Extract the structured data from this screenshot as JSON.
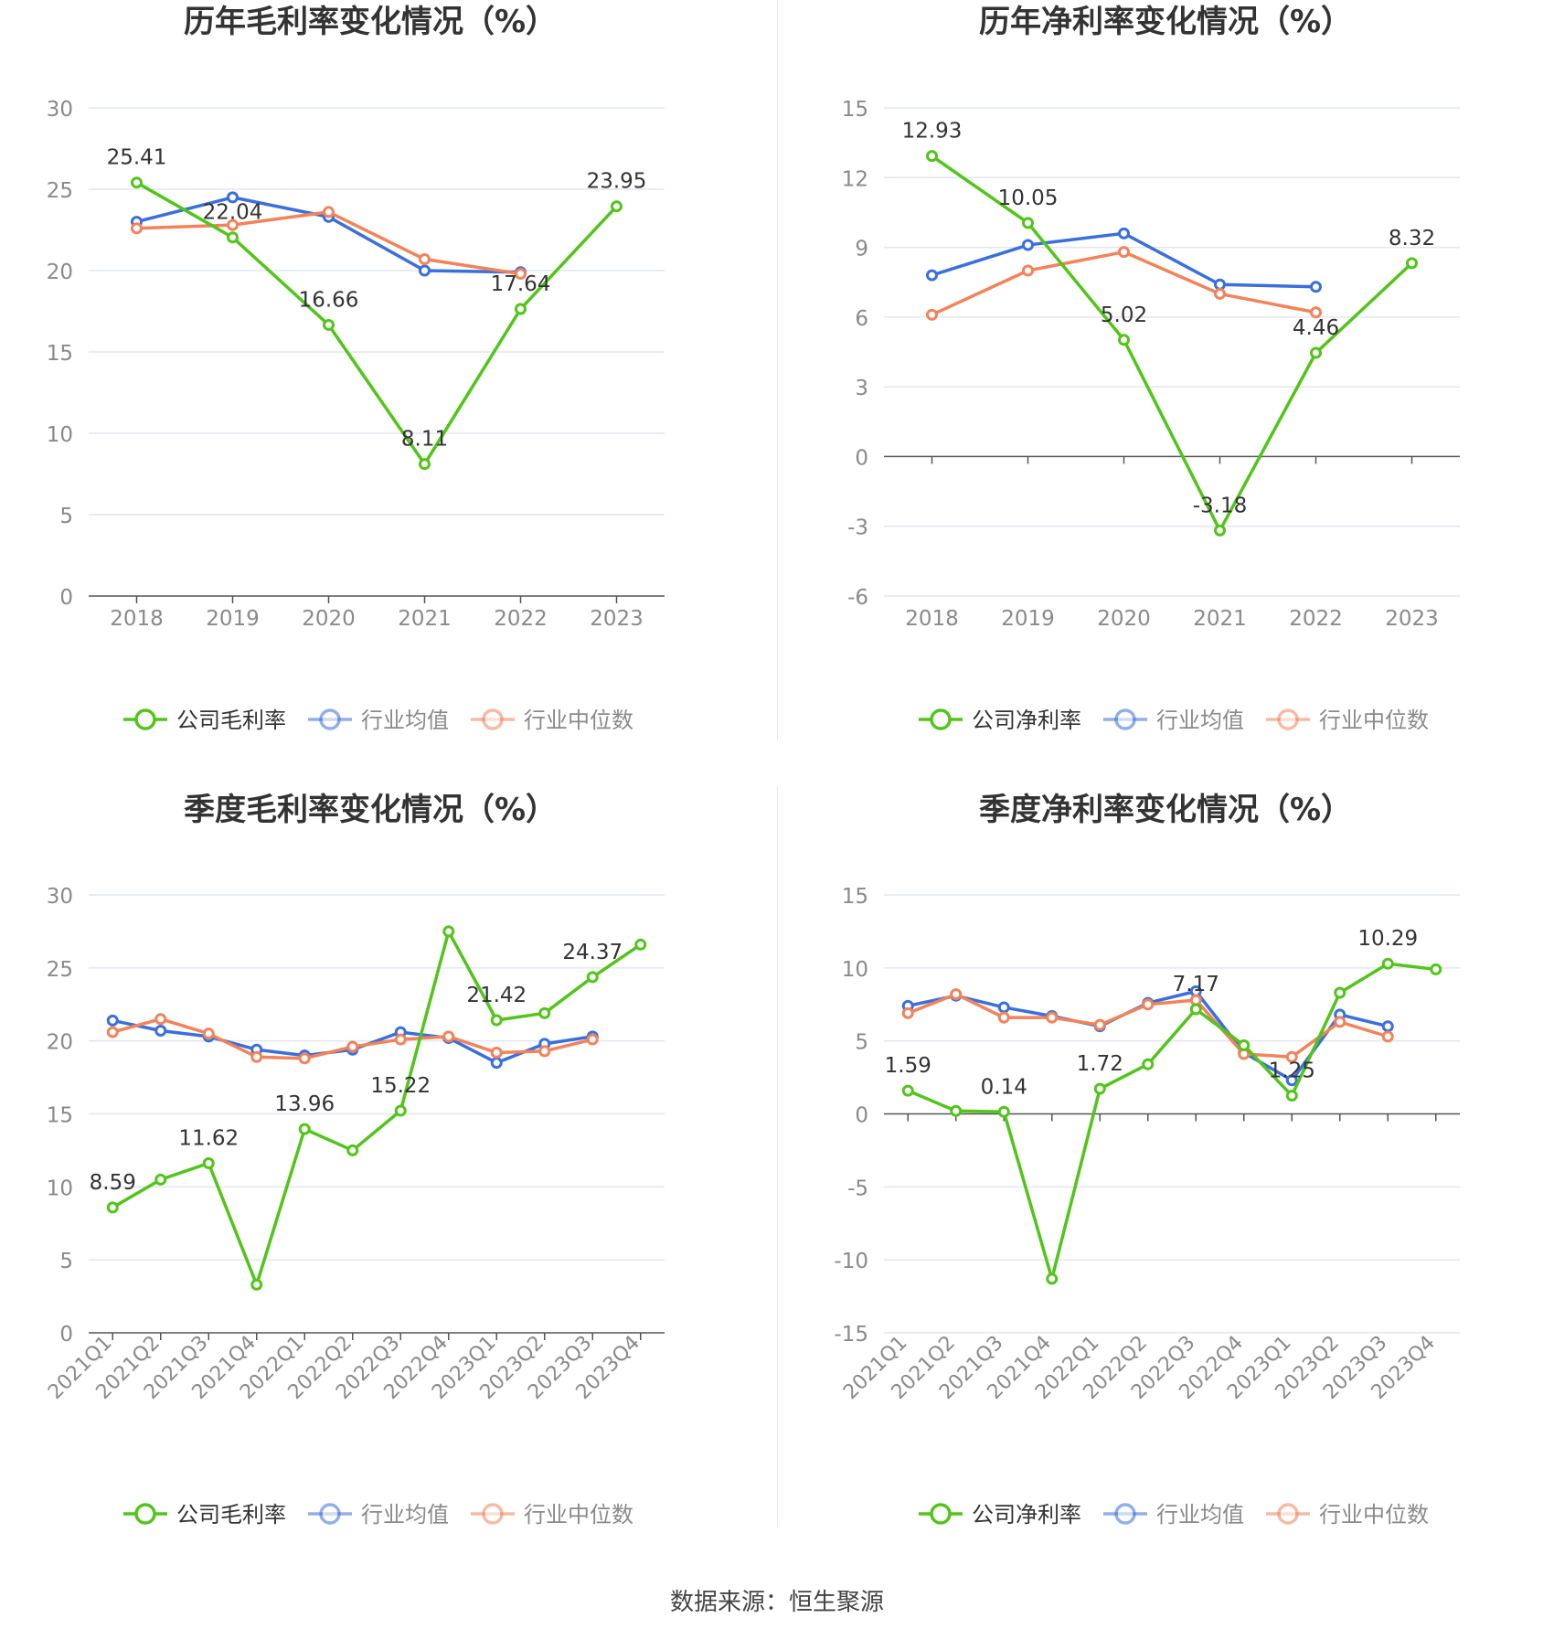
{
  "footer": {
    "source": "数据来源：恒生聚源"
  },
  "colors": {
    "company": "#52c41a",
    "avg": "#3a6fdc",
    "median": "#f2835a",
    "grid": "#e3e5f2",
    "axis": "#555555",
    "tick": "#8a8a8a",
    "title": "#333333"
  },
  "chart_data": [
    {
      "type": "line",
      "title": "历年毛利率变化情况（%）",
      "categories": [
        "2018",
        "2019",
        "2020",
        "2021",
        "2022",
        "2023"
      ],
      "ylim": [
        0,
        30
      ],
      "yticks": [
        0,
        5,
        10,
        15,
        20,
        25,
        30
      ],
      "grid": true,
      "legend": "bottom",
      "series": [
        {
          "name": "公司毛利率",
          "color": "#52c41a",
          "values": [
            25.41,
            22.04,
            16.66,
            8.11,
            17.64,
            23.95
          ],
          "labels": [
            "25.41",
            "22.04",
            "16.66",
            "8.11",
            "17.64",
            "23.95"
          ]
        },
        {
          "name": "行业均值",
          "color": "#3a6fdc",
          "values": [
            23.0,
            24.5,
            23.3,
            20.0,
            19.9,
            null
          ]
        },
        {
          "name": "行业中位数",
          "color": "#f2835a",
          "values": [
            22.6,
            22.8,
            23.6,
            20.7,
            19.8,
            null
          ]
        }
      ]
    },
    {
      "type": "line",
      "title": "历年净利率变化情况（%）",
      "categories": [
        "2018",
        "2019",
        "2020",
        "2021",
        "2022",
        "2023"
      ],
      "ylim": [
        -6,
        15
      ],
      "yticks": [
        -6,
        -3,
        0,
        3,
        6,
        9,
        12,
        15
      ],
      "grid": true,
      "legend": "bottom",
      "series": [
        {
          "name": "公司净利率",
          "color": "#52c41a",
          "values": [
            12.93,
            10.05,
            5.02,
            -3.18,
            4.46,
            8.32
          ],
          "labels": [
            "12.93",
            "10.05",
            "5.02",
            "-3.18",
            "4.46",
            "8.32"
          ]
        },
        {
          "name": "行业均值",
          "color": "#3a6fdc",
          "values": [
            7.8,
            9.1,
            9.6,
            7.4,
            7.3,
            null
          ]
        },
        {
          "name": "行业中位数",
          "color": "#f2835a",
          "values": [
            6.1,
            8.0,
            8.8,
            7.0,
            6.2,
            null
          ]
        }
      ]
    },
    {
      "type": "line",
      "title": "季度毛利率变化情况（%）",
      "categories": [
        "2021Q1",
        "2021Q2",
        "2021Q3",
        "2021Q4",
        "2022Q1",
        "2022Q2",
        "2022Q3",
        "2022Q4",
        "2023Q1",
        "2023Q2",
        "2023Q3",
        "2023Q4"
      ],
      "ylim": [
        0,
        30
      ],
      "yticks": [
        0,
        5,
        10,
        15,
        20,
        25,
        30
      ],
      "grid": true,
      "legend": "bottom",
      "series": [
        {
          "name": "公司毛利率",
          "color": "#52c41a",
          "values": [
            8.59,
            10.5,
            11.62,
            3.3,
            13.96,
            12.5,
            15.22,
            27.5,
            21.42,
            21.9,
            24.37,
            26.6
          ],
          "labels": [
            "8.59",
            "",
            "11.62",
            "",
            "13.96",
            "",
            "15.22",
            "",
            "21.42",
            "",
            "24.37",
            ""
          ]
        },
        {
          "name": "行业均值",
          "color": "#3a6fdc",
          "values": [
            21.4,
            20.7,
            20.3,
            19.4,
            19.0,
            19.4,
            20.6,
            20.2,
            18.5,
            19.8,
            20.3,
            null
          ]
        },
        {
          "name": "行业中位数",
          "color": "#f2835a",
          "values": [
            20.6,
            21.5,
            20.5,
            18.9,
            18.8,
            19.6,
            20.1,
            20.3,
            19.2,
            19.3,
            20.1,
            null
          ]
        }
      ]
    },
    {
      "type": "line",
      "title": "季度净利率变化情况（%）",
      "categories": [
        "2021Q1",
        "2021Q2",
        "2021Q3",
        "2021Q4",
        "2022Q1",
        "2022Q2",
        "2022Q3",
        "2022Q4",
        "2023Q1",
        "2023Q2",
        "2023Q3",
        "2023Q4"
      ],
      "ylim": [
        -15,
        15
      ],
      "yticks": [
        -15,
        -10,
        -5,
        0,
        5,
        10,
        15
      ],
      "grid": true,
      "legend": "bottom",
      "series": [
        {
          "name": "公司净利率",
          "color": "#52c41a",
          "values": [
            1.59,
            0.2,
            0.14,
            -11.3,
            1.72,
            3.4,
            7.17,
            4.7,
            1.25,
            8.3,
            10.29,
            9.9
          ],
          "labels": [
            "1.59",
            "",
            "0.14",
            "",
            "1.72",
            "",
            "7.17",
            "",
            "1.25",
            "",
            "10.29",
            ""
          ]
        },
        {
          "name": "行业均值",
          "color": "#3a6fdc",
          "values": [
            7.4,
            8.1,
            7.3,
            6.7,
            6.0,
            7.6,
            8.4,
            4.2,
            2.3,
            6.8,
            6.0,
            null
          ]
        },
        {
          "name": "行业中位数",
          "color": "#f2835a",
          "values": [
            6.9,
            8.2,
            6.6,
            6.6,
            6.1,
            7.5,
            7.8,
            4.1,
            3.9,
            6.3,
            5.3,
            null
          ]
        }
      ]
    }
  ]
}
